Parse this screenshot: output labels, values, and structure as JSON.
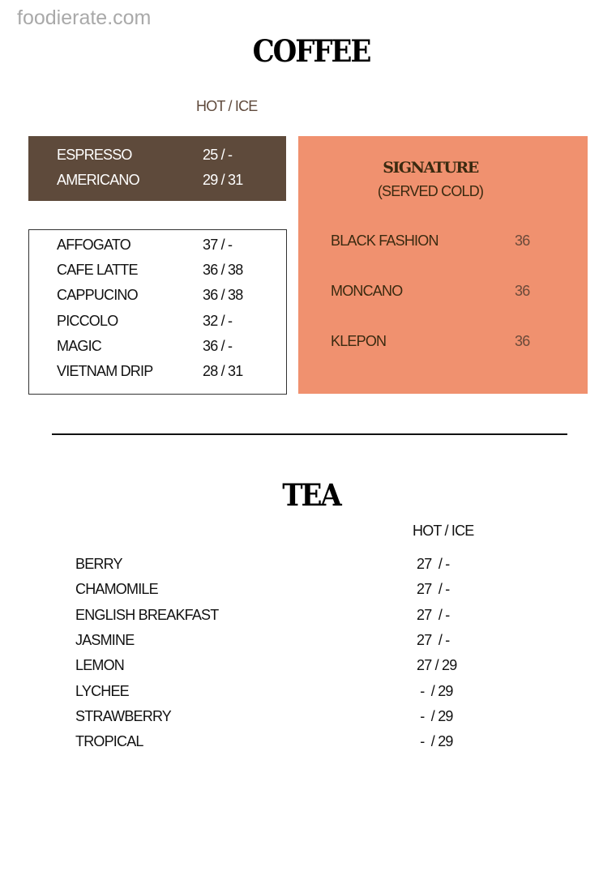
{
  "watermark": "foodierate.com",
  "coffee": {
    "title": "COFFEE",
    "header": "HOT / ICE",
    "basic": [
      {
        "name": "ESPRESSO",
        "price": "25 / -"
      },
      {
        "name": "AMERICANO",
        "price": "29 / 31"
      }
    ],
    "milk": [
      {
        "name": "AFFOGATO",
        "price": "37 / -"
      },
      {
        "name": "CAFE LATTE",
        "price": "36 / 38"
      },
      {
        "name": "CAPPUCINO",
        "price": "36 / 38"
      },
      {
        "name": "PICCOLO",
        "price": "32 / -"
      },
      {
        "name": "MAGIC",
        "price": "36 / -"
      },
      {
        "name": "VIETNAM DRIP",
        "price": "28 / 31"
      }
    ],
    "signature": {
      "title": "SIGNATURE",
      "subtitle": "(SERVED COLD)",
      "items": [
        {
          "name": "BLACK FASHION",
          "price": "36"
        },
        {
          "name": "MONCANO",
          "price": "36"
        },
        {
          "name": "KLEPON",
          "price": "36"
        }
      ]
    }
  },
  "tea": {
    "title": "TEA",
    "header": "HOT / ICE",
    "items": [
      {
        "name": "BERRY",
        "price": "27  / -"
      },
      {
        "name": "CHAMOMILE",
        "price": "27  / -"
      },
      {
        "name": "ENGLISH BREAKFAST",
        "price": "27  / -"
      },
      {
        "name": "JASMINE",
        "price": "27  / -"
      },
      {
        "name": "LEMON",
        "price": "27 / 29"
      },
      {
        "name": "LYCHEE",
        "price": " -  / 29"
      },
      {
        "name": "STRAWBERRY",
        "price": " -  / 29"
      },
      {
        "name": "TROPICAL",
        "price": " -  / 29"
      }
    ]
  },
  "colors": {
    "brown": "#5e4a3b",
    "orange": "#f0916f",
    "signature_text": "#3a2a10"
  }
}
